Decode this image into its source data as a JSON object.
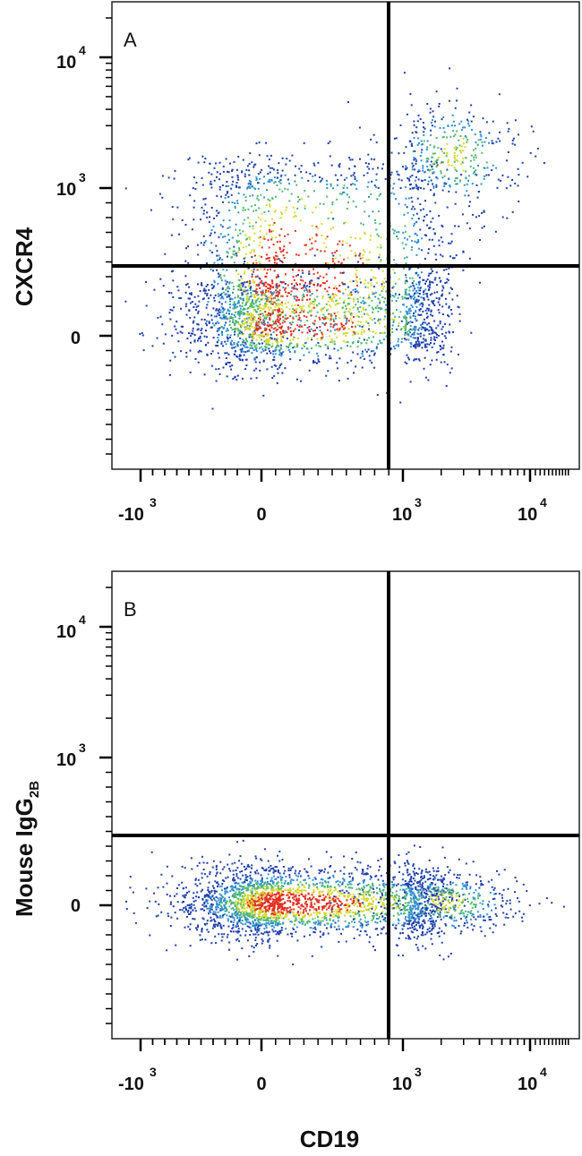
{
  "chart_data": [
    {
      "type": "scatter",
      "panel_label": "A",
      "xlabel": "",
      "ylabel": "CXCR4",
      "x_scale": "biexponential",
      "y_scale": "biexponential",
      "x_ticks": [
        "-10^3",
        "0",
        "10^3",
        "10^4"
      ],
      "y_ticks": [
        "0",
        "10^3",
        "10^4"
      ],
      "quadrant_gate": {
        "x": 700,
        "y": 280
      },
      "populations": [
        {
          "name": "",
          "center": [
            150,
            380
          ],
          "spread_x": [
            400,
            900
          ],
          "spread_y": [
            250,
            600
          ],
          "n": 1800,
          "density": "high"
        },
        {
          "name": "",
          "center": [
            150,
            80
          ],
          "spread_x": [
            400,
            900
          ],
          "spread_y": [
            150,
            180
          ],
          "n": 1300,
          "density": "high"
        },
        {
          "name": "",
          "center": [
            2500,
            1800
          ],
          "spread_x": [
            0.28,
            0.28
          ],
          "spread_y": [
            0.22,
            0.22
          ],
          "n": 380,
          "density": "medium"
        }
      ]
    },
    {
      "type": "scatter",
      "panel_label": "B",
      "xlabel": "CD19",
      "ylabel": "Mouse IgG",
      "ylabel_subscript": "2B",
      "x_scale": "biexponential",
      "y_scale": "biexponential",
      "x_ticks": [
        "-10^3",
        "0",
        "10^3",
        "10^4"
      ],
      "y_ticks": [
        "0",
        "10^3",
        "10^4"
      ],
      "quadrant_gate": {
        "x": 700,
        "y": 280
      },
      "populations": [
        {
          "name": "",
          "center": [
            150,
            20
          ],
          "spread_x": [
            400,
            900
          ],
          "spread_y": [
            120,
            130
          ],
          "n": 2600,
          "density": "high"
        },
        {
          "name": "",
          "center": [
            2200,
            20
          ],
          "spread_x": [
            0.3,
            0.3
          ],
          "spread_y": [
            110,
            120
          ],
          "n": 420,
          "density": "medium"
        }
      ]
    }
  ],
  "colors": {
    "density_low": "#1f3fa8",
    "density_mid_low": "#2f8fd0",
    "density_mid": "#4fb870",
    "density_mid_high": "#d8d830",
    "density_high": "#e03020",
    "gate_line": "#000000",
    "frame": "#222222"
  }
}
